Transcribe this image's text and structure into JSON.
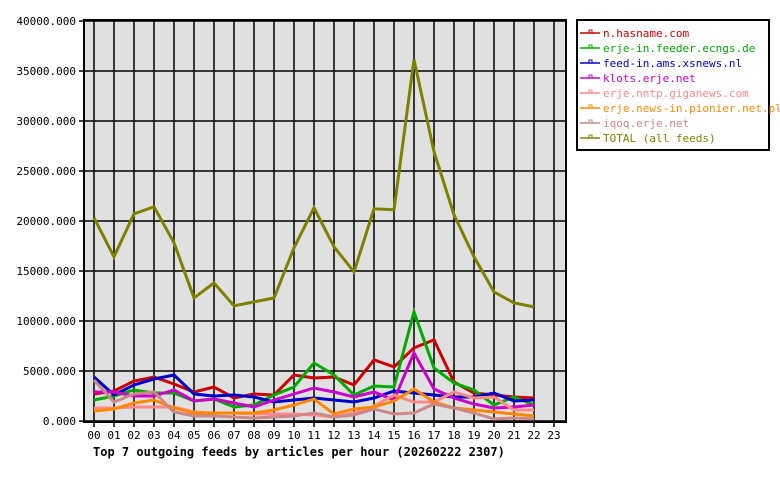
{
  "chart_data": {
    "type": "line",
    "title": "Top 7 outgoing feeds by articles per hour (20260222 2307)",
    "xlabel": "",
    "ylabel": "",
    "ylim": [
      0,
      40000
    ],
    "yticks": [
      "0.000",
      "5000.000",
      "10000.000",
      "15000.000",
      "20000.000",
      "25000.000",
      "30000.000",
      "35000.000",
      "40000.000"
    ],
    "ytick_values": [
      0,
      5000,
      10000,
      15000,
      20000,
      25000,
      30000,
      35000,
      40000
    ],
    "x": [
      "00",
      "01",
      "02",
      "03",
      "04",
      "05",
      "06",
      "07",
      "08",
      "09",
      "10",
      "11",
      "12",
      "13",
      "14",
      "15",
      "16",
      "17",
      "18",
      "19",
      "20",
      "21",
      "22",
      "23"
    ],
    "grid": true,
    "legend_position": "right-top",
    "plot_background": "#e0e0e0",
    "series": [
      {
        "name": "n.hasname.com",
        "color": "#cc0000",
        "values": [
          2700,
          3000,
          4000,
          4400,
          3700,
          2900,
          3400,
          2300,
          2700,
          2600,
          4600,
          4300,
          4400,
          3600,
          6100,
          5400,
          7300,
          8100,
          3900,
          2800,
          2600,
          2400,
          2300
        ]
      },
      {
        "name": "erje-in.feeder.ecngs.de",
        "color": "#00aa00",
        "values": [
          2100,
          2500,
          3100,
          2800,
          2800,
          2000,
          2200,
          1400,
          1600,
          2600,
          3400,
          5800,
          4600,
          2600,
          3500,
          3400,
          10900,
          5300,
          3800,
          3100,
          1600,
          2400,
          1600
        ]
      },
      {
        "name": "feed-in.ams.xsnews.nl",
        "color": "#0000cc",
        "values": [
          4400,
          2600,
          3600,
          4200,
          4600,
          2700,
          2500,
          2600,
          2400,
          1900,
          2100,
          2300,
          2100,
          1900,
          2300,
          3000,
          2800,
          2600,
          2400,
          2400,
          2800,
          2000,
          2100
        ]
      },
      {
        "name": "klots.erje.net",
        "color": "#cc00cc",
        "values": [
          2900,
          2900,
          2500,
          2500,
          3100,
          2000,
          2200,
          1800,
          1400,
          2100,
          2700,
          3300,
          2900,
          2400,
          2900,
          2100,
          6800,
          3200,
          2300,
          1700,
          1300,
          1400,
          1600
        ]
      },
      {
        "name": "erje.nntp.giganews.com",
        "color": "#ff8888",
        "values": [
          1300,
          1300,
          1400,
          1400,
          1400,
          900,
          800,
          800,
          700,
          700,
          700,
          600,
          400,
          800,
          1500,
          2600,
          1900,
          1900,
          2900,
          2300,
          2400,
          1100,
          1100
        ]
      },
      {
        "name": "erje.news-in.pionier.net.pl",
        "color": "#ff8800",
        "values": [
          1000,
          1200,
          1800,
          2100,
          1300,
          800,
          800,
          800,
          800,
          1100,
          1600,
          2200,
          700,
          1200,
          1400,
          2000,
          3200,
          1900,
          1300,
          1100,
          900,
          700,
          500
        ]
      },
      {
        "name": "iqoq.erje.net",
        "color": "#cc8888",
        "values": [
          4100,
          1900,
          2700,
          2900,
          900,
          500,
          500,
          400,
          300,
          400,
          500,
          800,
          400,
          600,
          1200,
          700,
          800,
          1700,
          1300,
          800,
          200,
          300,
          200
        ]
      },
      {
        "name": "TOTAL (all feeds)",
        "color": "#808000",
        "values": [
          20300,
          16400,
          20700,
          21400,
          17800,
          12300,
          13800,
          11500,
          11900,
          12300,
          17300,
          21300,
          17400,
          14900,
          21200,
          21100,
          36100,
          26900,
          20600,
          16400,
          12900,
          11800,
          11400
        ]
      }
    ]
  }
}
